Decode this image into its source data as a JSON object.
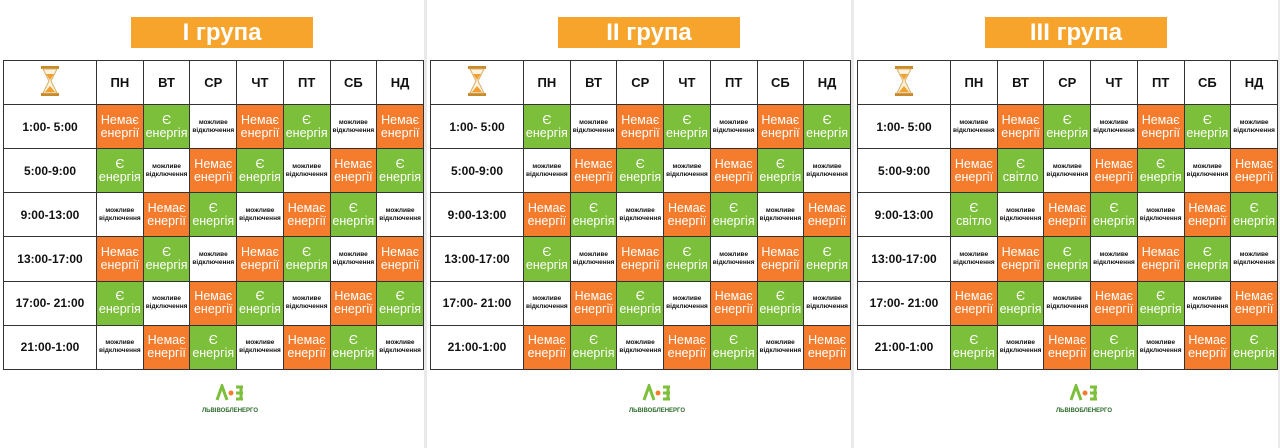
{
  "header_icon_color": "#f0a030",
  "cell_colors": {
    "Немає енергії": "#f47c2c",
    "Є енергія": "#7cbf3a",
    "Є світло": "#7cbf3a",
    "можливе відключення": "#ffffff"
  },
  "logo": {
    "text": "ЛЬВІВОБЛЕНЕРГО"
  },
  "panels": [
    {
      "title": "І група",
      "header": [
        "ПН",
        "ВТ",
        "СР",
        "ЧТ",
        "ПТ",
        "СБ",
        "НД"
      ],
      "rows": [
        {
          "time": "1:00- 5:00",
          "cells": [
            "Немає енергії",
            "Є енергія",
            "можливе відключення",
            "Немає енергії",
            "Є енергія",
            "можливе відключення",
            "Немає енергії"
          ]
        },
        {
          "time": "5:00-9:00",
          "cells": [
            "Є енергія",
            "можливе відключення",
            "Немає енергії",
            "Є енергія",
            "можливе відключення",
            "Немає енергії",
            "Є енергія"
          ]
        },
        {
          "time": "9:00-13:00",
          "cells": [
            "можливе відключення",
            "Немає енергії",
            "Є енергія",
            "можливе відключення",
            "Немає енергії",
            "Є енергія",
            "можливе відключення"
          ]
        },
        {
          "time": "13:00-17:00",
          "cells": [
            "Немає енергії",
            "Є енергія",
            "можливе відключення",
            "Немає енергії",
            "Є енергія",
            "можливе відключення",
            "Немає енергії"
          ]
        },
        {
          "time": "17:00- 21:00",
          "cells": [
            "Є енергія",
            "можливе відключення",
            "Немає енергії",
            "Є енергія",
            "можливе відключення",
            "Немає енергії",
            "Є енергія"
          ]
        },
        {
          "time": "21:00-1:00",
          "cells": [
            "можливе відключення",
            "Немає енергії",
            "Є енергія",
            "можливе відключення",
            "Немає енергії",
            "Є енергія",
            "можливе відключення"
          ]
        }
      ]
    },
    {
      "title": "ІІ група",
      "header": [
        "ПН",
        "ВТ",
        "СР",
        "ЧТ",
        "ПТ",
        "СБ",
        "НД"
      ],
      "rows": [
        {
          "time": "1:00- 5:00",
          "cells": [
            "Є енергія",
            "можливе відключення",
            "Немає енергії",
            "Є енергія",
            "можливе відключення",
            "Немає енергії",
            "Є енергія"
          ]
        },
        {
          "time": "5:00-9:00",
          "cells": [
            "можливе відключення",
            "Немає енергії",
            "Є енергія",
            "можливе відключення",
            "Немає енергії",
            "Є енергія",
            "можливе відключення"
          ]
        },
        {
          "time": "9:00-13:00",
          "cells": [
            "Немає енергії",
            "Є енергія",
            "можливе відключення",
            "Немає енергії",
            "Є енергія",
            "можливе відключення",
            "Немає енергії"
          ]
        },
        {
          "time": "13:00-17:00",
          "cells": [
            "Є енергія",
            "можливе відключення",
            "Немає енергії",
            "Є енергія",
            "можливе відключення",
            "Немає енергії",
            "Є енергія"
          ]
        },
        {
          "time": "17:00- 21:00",
          "cells": [
            "можливе відключення",
            "Немає енергії",
            "Є енергія",
            "можливе відключення",
            "Немає енергії",
            "Є енергія",
            "можливе відключення"
          ]
        },
        {
          "time": "21:00-1:00",
          "cells": [
            "Немає енергії",
            "Є енергія",
            "можливе відключення",
            "Немає енергії",
            "Є енергія",
            "можливе відключення",
            "Немає енергії"
          ]
        }
      ]
    },
    {
      "title": "ІІІ група",
      "header": [
        "ПН",
        "ВТ",
        "СР",
        "ЧТ",
        "ПТ",
        "СБ",
        "НД"
      ],
      "rows": [
        {
          "time": "1:00- 5:00",
          "cells": [
            "можливе відключення",
            "Немає енергії",
            "Є енергія",
            "можливе відключення",
            "Немає енергії",
            "Є енергія",
            "можливе відключення"
          ]
        },
        {
          "time": "5:00-9:00",
          "cells": [
            "Немає енергії",
            "Є світло",
            "можливе відключення",
            "Немає енергії",
            "Є енергія",
            "можливе відключення",
            "Немає енергії"
          ]
        },
        {
          "time": "9:00-13:00",
          "cells": [
            "Є світло",
            "можливе відключення",
            "Немає енергії",
            "Є енергія",
            "можливе відключення",
            "Немає енергії",
            "Є енергія"
          ]
        },
        {
          "time": "13:00-17:00",
          "cells": [
            "можливе відключення",
            "Немає енергії",
            "Є енергія",
            "можливе відключення",
            "Немає енергії",
            "Є енергія",
            "можливе відключення"
          ]
        },
        {
          "time": "17:00- 21:00",
          "cells": [
            "Немає енергії",
            "Є енергія",
            "можливе відключення",
            "Немає енергії",
            "Є енергія",
            "можливе відключення",
            "Немає енергії"
          ]
        },
        {
          "time": "21:00-1:00",
          "cells": [
            "Є енергія",
            "можливе відключення",
            "Немає енергії",
            "Є енергія",
            "можливе відключення",
            "Немає енергії",
            "Є енергія"
          ]
        }
      ]
    }
  ]
}
